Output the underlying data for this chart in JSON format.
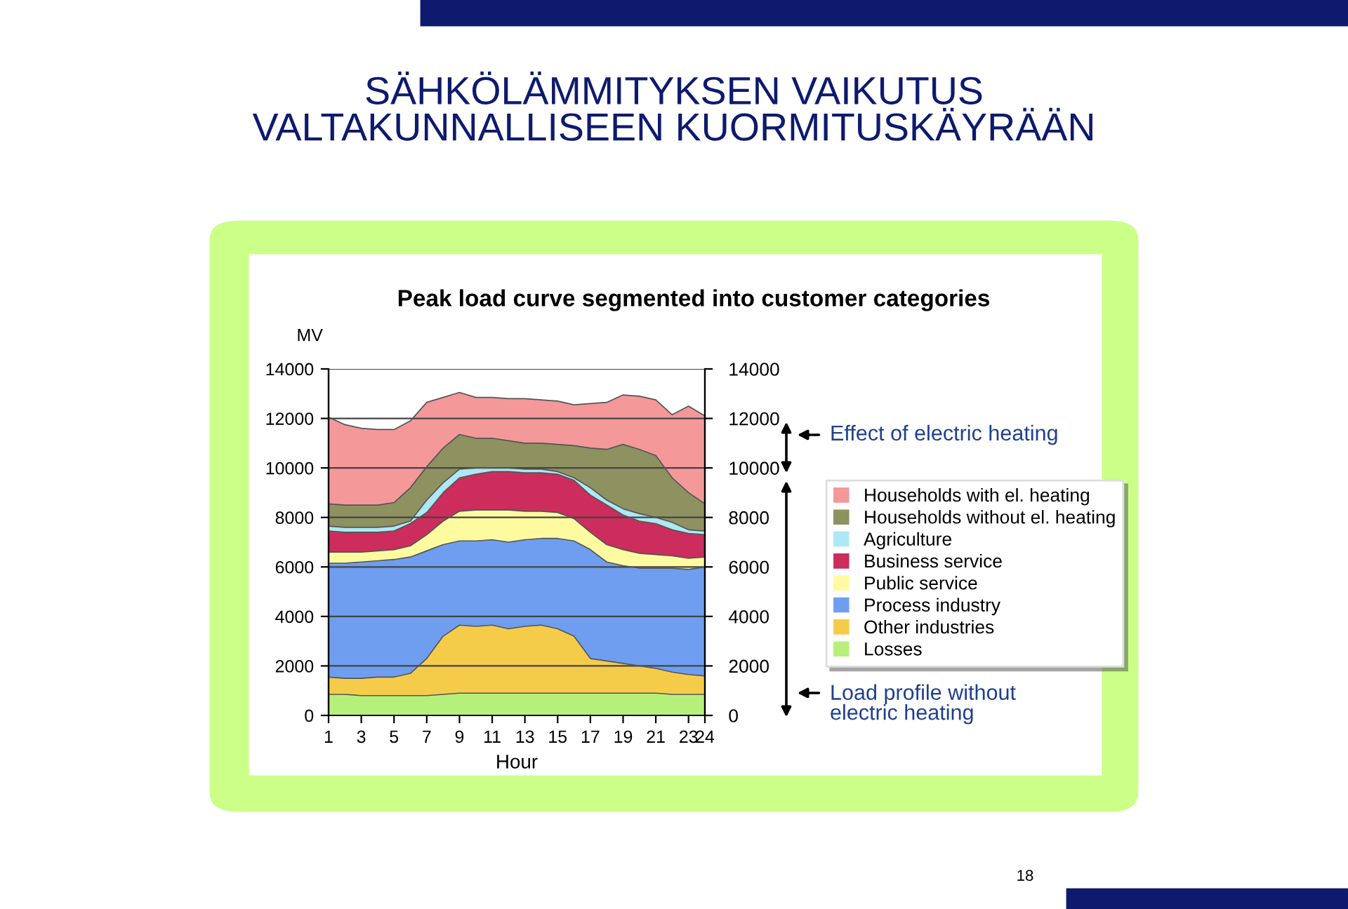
{
  "chart_data": {
    "type": "area",
    "stacked": true,
    "title": "SÄHKÖLÄMMITYKSEN VAIKUTUS\nVALTAKUNNALLISEEN KUORMITUSKÄYRÄÄN",
    "subtitle": "Peak load curve segmented into customer categories",
    "xlabel": "Hour",
    "ylabel": "MV",
    "x": [
      1,
      2,
      3,
      4,
      5,
      6,
      7,
      8,
      9,
      10,
      11,
      12,
      13,
      14,
      15,
      16,
      17,
      18,
      19,
      20,
      21,
      22,
      23,
      24
    ],
    "xlim": [
      1,
      24
    ],
    "xticks": [
      1,
      3,
      5,
      7,
      9,
      11,
      13,
      15,
      17,
      19,
      21,
      23,
      24
    ],
    "ylim": [
      0,
      14000
    ],
    "yticks": [
      0,
      2000,
      4000,
      6000,
      8000,
      10000,
      12000,
      14000
    ],
    "y2lim": [
      0,
      14000
    ],
    "y2ticks": [
      0,
      2000,
      4000,
      6000,
      8000,
      10000,
      12000,
      14000
    ],
    "grid": "y",
    "legend": "right",
    "series": [
      {
        "name": "Losses",
        "color": "#b6f07a",
        "values": [
          850,
          850,
          800,
          800,
          800,
          800,
          800,
          850,
          900,
          900,
          900,
          900,
          900,
          900,
          900,
          900,
          900,
          900,
          900,
          900,
          900,
          850,
          850,
          850
        ]
      },
      {
        "name": "Other industries",
        "color": "#f5cc4a",
        "values": [
          700,
          650,
          700,
          750,
          750,
          900,
          1500,
          2350,
          2750,
          2700,
          2750,
          2600,
          2700,
          2750,
          2600,
          2300,
          1400,
          1300,
          1200,
          1100,
          1000,
          900,
          800,
          750
        ]
      },
      {
        "name": "Process industry",
        "color": "#6f9ef0",
        "values": [
          4600,
          4650,
          4700,
          4700,
          4750,
          4700,
          4350,
          3700,
          3400,
          3450,
          3450,
          3500,
          3500,
          3500,
          3650,
          3850,
          4400,
          4000,
          3950,
          3950,
          4050,
          4200,
          4250,
          4400
        ]
      },
      {
        "name": "Public service",
        "color": "#fdfaa0",
        "values": [
          450,
          450,
          400,
          400,
          400,
          450,
          650,
          950,
          1200,
          1250,
          1200,
          1300,
          1150,
          1100,
          1050,
          900,
          700,
          700,
          650,
          600,
          550,
          500,
          450,
          400
        ]
      },
      {
        "name": "Business service",
        "color": "#cc2d5c",
        "values": [
          850,
          800,
          800,
          750,
          750,
          900,
          900,
          1150,
          1350,
          1450,
          1550,
          1550,
          1550,
          1550,
          1550,
          1550,
          1500,
          1600,
          1400,
          1300,
          1250,
          1050,
          1000,
          900
        ]
      },
      {
        "name": "Agriculture",
        "color": "#aee8f4",
        "values": [
          200,
          200,
          200,
          200,
          200,
          100,
          500,
          400,
          350,
          250,
          150,
          150,
          150,
          150,
          100,
          100,
          300,
          200,
          250,
          300,
          250,
          300,
          150,
          150
        ]
      },
      {
        "name": "Households without el. heating",
        "color": "#8e9160",
        "values": [
          900,
          900,
          900,
          900,
          950,
          1350,
          1350,
          1400,
          1400,
          1200,
          1200,
          1100,
          1050,
          1050,
          1100,
          1300,
          1600,
          2050,
          2600,
          2600,
          2500,
          1800,
          1500,
          1100
        ]
      },
      {
        "name": "Households with el. heating",
        "color": "#f4989a",
        "values": [
          3500,
          3250,
          3100,
          3050,
          2950,
          2700,
          2600,
          2050,
          1700,
          1650,
          1650,
          1700,
          1800,
          1750,
          1750,
          1650,
          1800,
          1900,
          2000,
          2150,
          2250,
          2550,
          3500,
          3550
        ]
      }
    ],
    "annotations": [
      "Effect of electric heating",
      "Load profile without\nelectric heating",
      "18"
    ]
  }
}
